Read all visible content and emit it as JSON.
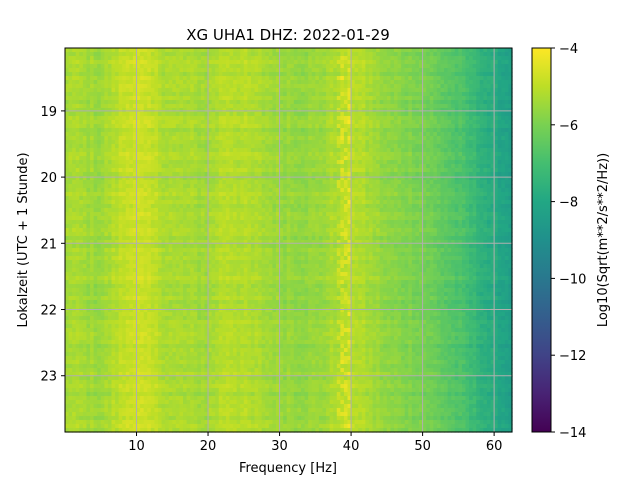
{
  "chart_data": {
    "type": "heatmap",
    "title": "XG UHA1  DHZ: 2022-01-29",
    "xlabel": "Frequency [Hz]",
    "ylabel": "Lokalzeit (UTC + 1 Stunde)",
    "xlim": [
      0,
      62.5
    ],
    "ylim": [
      23.85,
      18.05
    ],
    "x_ticks": [
      10,
      20,
      30,
      40,
      50,
      60
    ],
    "y_ticks": [
      19,
      20,
      21,
      22,
      23
    ],
    "grid": true,
    "colormap": "viridis",
    "colorbar": {
      "label": "Log10(Sqrt(m**2/s**2/Hz))",
      "min": -14,
      "max": -4,
      "ticks": [
        -4,
        -6,
        -8,
        -10,
        -12,
        -14
      ],
      "tick_labels": [
        "−4",
        "−6",
        "−8",
        "−10",
        "−12",
        "−14"
      ]
    },
    "series": [
      {
        "description_free": true,
        "x": [
          1,
          5,
          9.5,
          15,
          20,
          22.5,
          30,
          35,
          40,
          45,
          50,
          55,
          60,
          62.5
        ],
        "values": [
          -5.3,
          -5.5,
          -4.7,
          -5.3,
          -5.4,
          -5.0,
          -5.5,
          -5.6,
          -5.0,
          -5.7,
          -6.0,
          -6.8,
          -7.9,
          -8.3
        ]
      }
    ]
  }
}
